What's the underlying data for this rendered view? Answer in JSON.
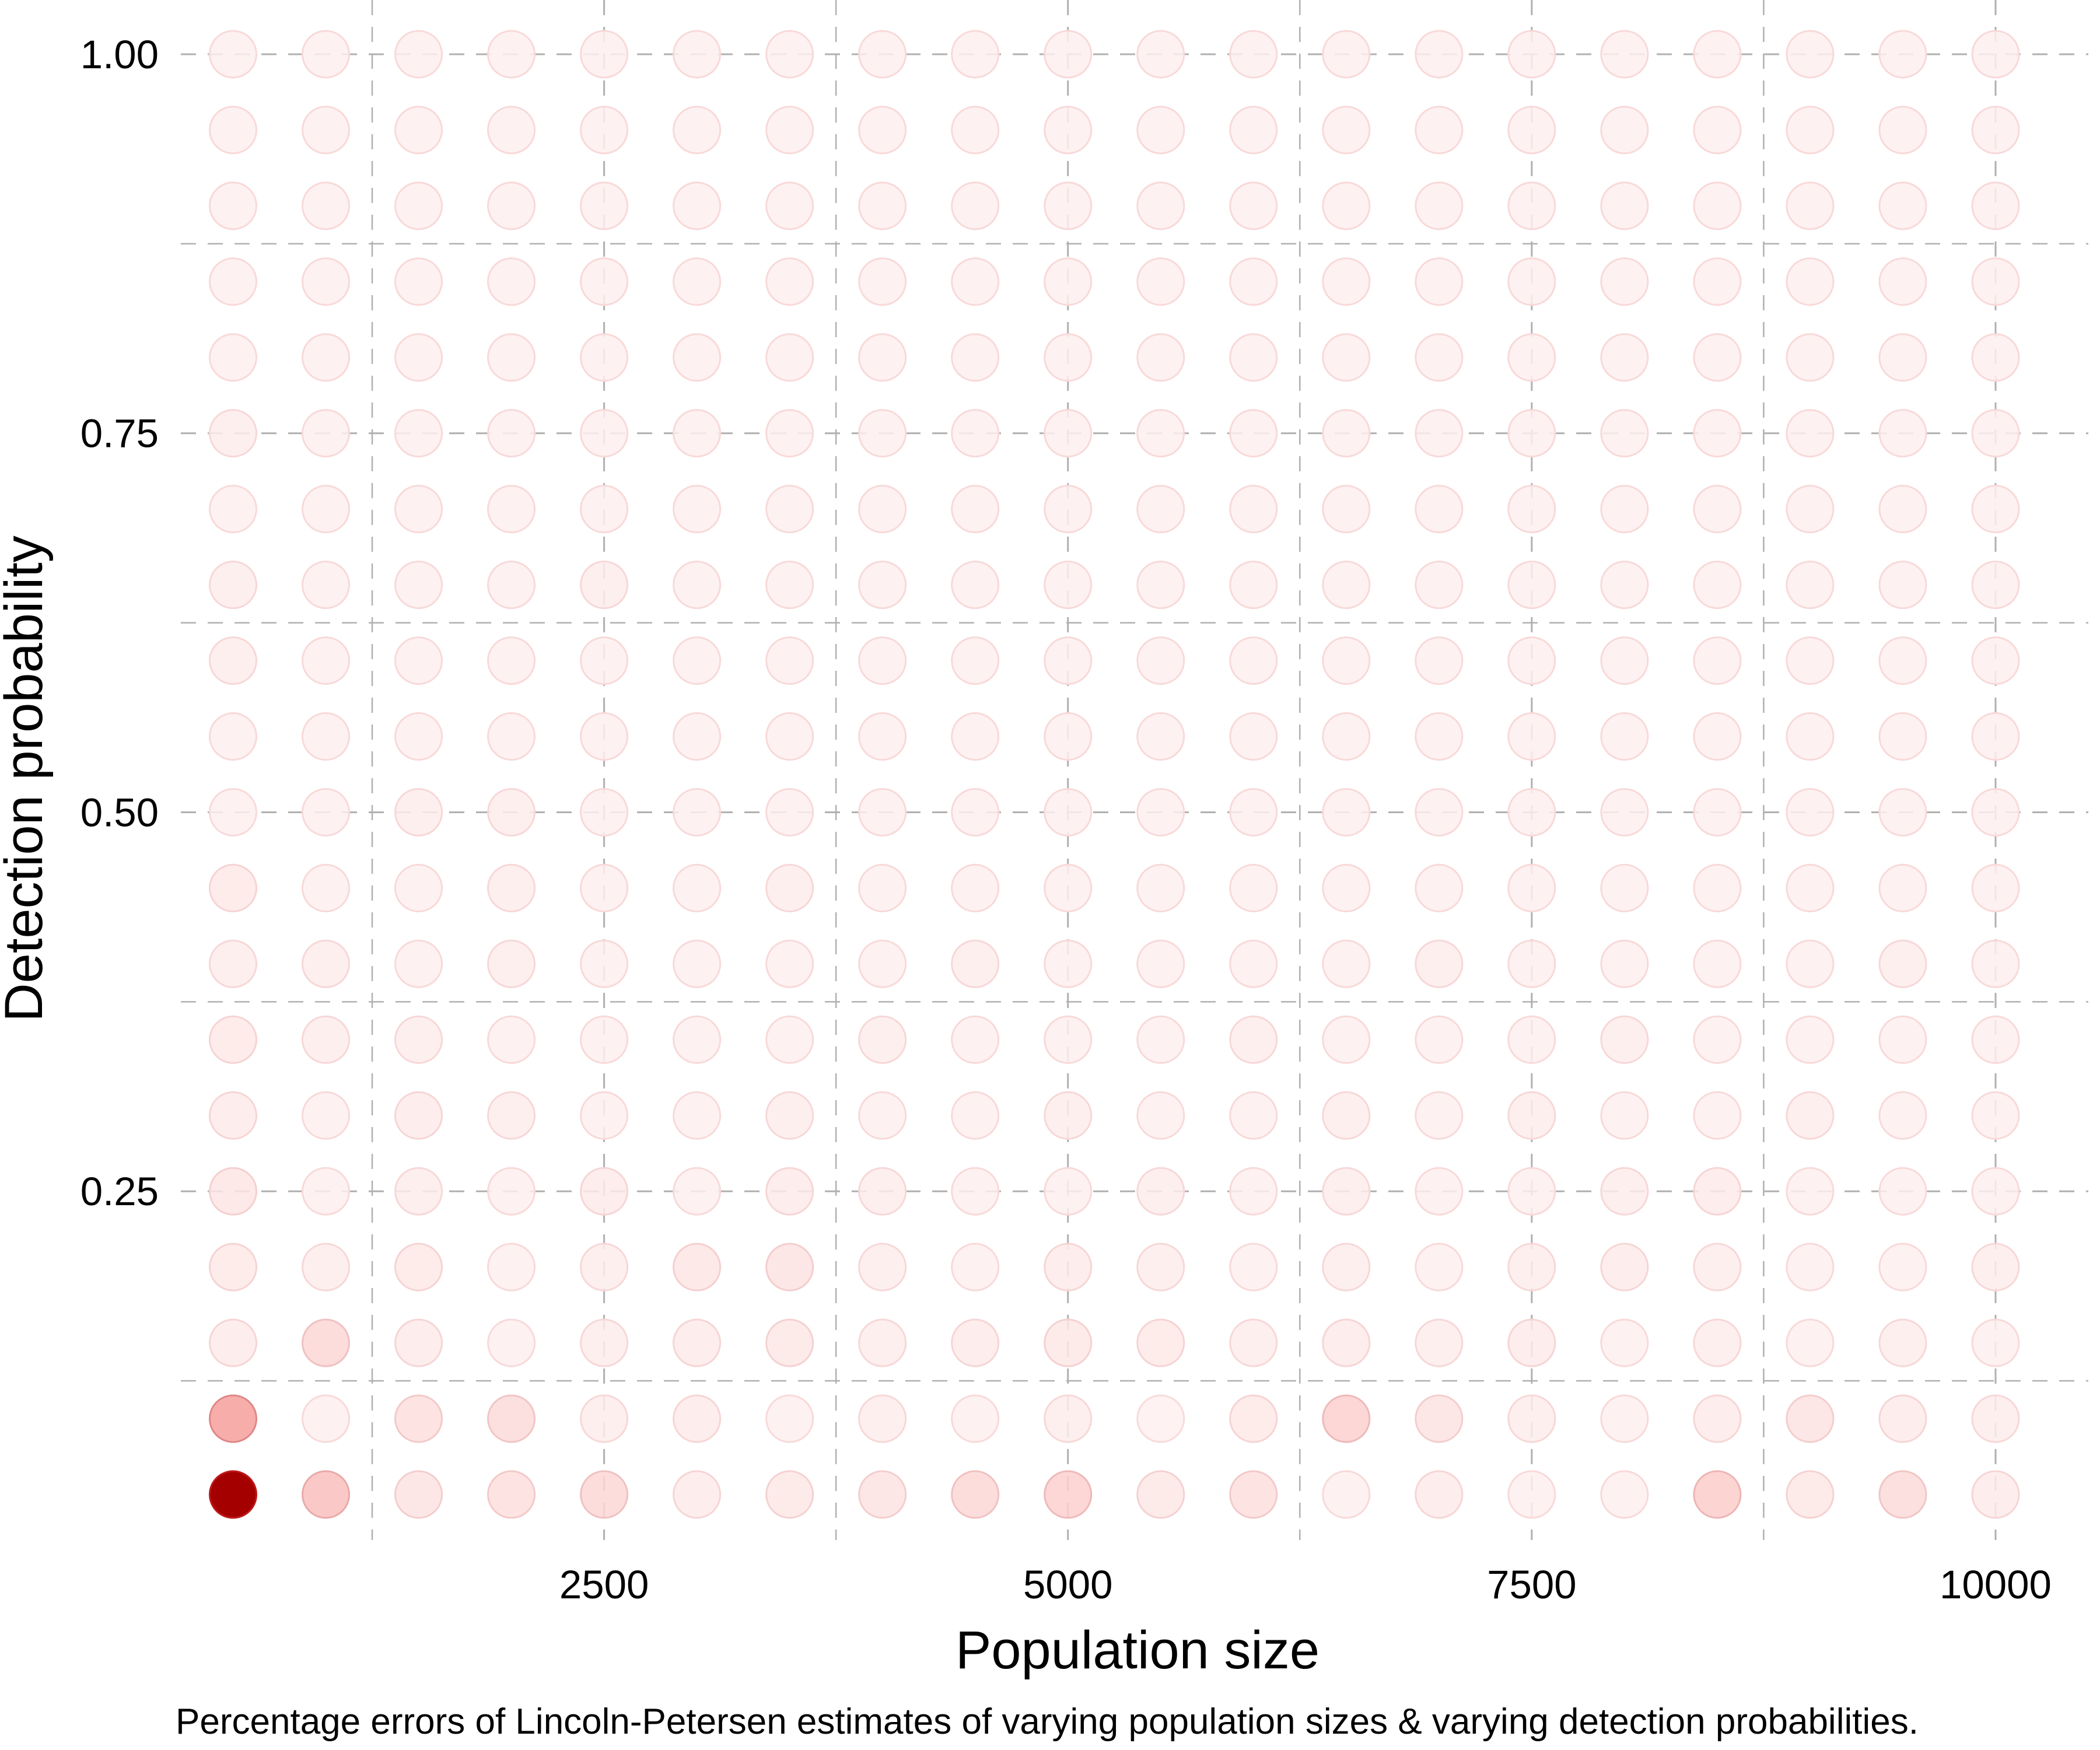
{
  "chart_data": {
    "type": "scatter",
    "xlabel": "Population size",
    "ylabel": "Detection probability",
    "caption": "Percentage errors of Lincoln-Petersen estimates of varying population sizes & varying detection probabilities.",
    "x_ticks": [
      2500,
      5000,
      7500,
      10000
    ],
    "x_tick_labels": [
      "2500",
      "5000",
      "7500",
      "10000"
    ],
    "y_ticks": [
      0.25,
      0.5,
      0.75,
      1.0
    ],
    "y_tick_labels": [
      "0.25",
      "0.50",
      "0.75",
      "1.00"
    ],
    "xlim": [
      250,
      10500
    ],
    "ylim": [
      0.02,
      1.03
    ],
    "grid": true,
    "grid_style": "dashed",
    "color_low": "#fff6f6",
    "color_high": "#a50000",
    "x": [
      500,
      1000,
      1500,
      2000,
      2500,
      3000,
      3500,
      4000,
      4500,
      5000,
      5500,
      6000,
      6500,
      7000,
      7500,
      8000,
      8500,
      9000,
      9500,
      10000
    ],
    "y": [
      0.05,
      0.1,
      0.15,
      0.2,
      0.25,
      0.3,
      0.35,
      0.4,
      0.45,
      0.5,
      0.55,
      0.6,
      0.65,
      0.7,
      0.75,
      0.8,
      0.85,
      0.9,
      0.95,
      1.0
    ],
    "error_intensity": [
      [
        1.0,
        0.28,
        0.1,
        0.12,
        0.16,
        0.06,
        0.08,
        0.1,
        0.16,
        0.2,
        0.08,
        0.12,
        0.04,
        0.06,
        0.04,
        0.04,
        0.22,
        0.08,
        0.14,
        0.06
      ],
      [
        0.45,
        0.04,
        0.12,
        0.14,
        0.05,
        0.06,
        0.04,
        0.05,
        0.04,
        0.05,
        0.03,
        0.07,
        0.2,
        0.1,
        0.05,
        0.04,
        0.06,
        0.1,
        0.06,
        0.05
      ],
      [
        0.06,
        0.16,
        0.06,
        0.04,
        0.05,
        0.06,
        0.08,
        0.05,
        0.06,
        0.08,
        0.07,
        0.05,
        0.06,
        0.05,
        0.06,
        0.04,
        0.05,
        0.04,
        0.05,
        0.04
      ],
      [
        0.07,
        0.05,
        0.07,
        0.04,
        0.05,
        0.09,
        0.1,
        0.05,
        0.04,
        0.06,
        0.05,
        0.04,
        0.05,
        0.04,
        0.05,
        0.06,
        0.05,
        0.04,
        0.04,
        0.05
      ],
      [
        0.09,
        0.04,
        0.05,
        0.04,
        0.06,
        0.04,
        0.06,
        0.05,
        0.04,
        0.04,
        0.05,
        0.04,
        0.05,
        0.04,
        0.04,
        0.05,
        0.06,
        0.04,
        0.04,
        0.04
      ],
      [
        0.06,
        0.04,
        0.06,
        0.05,
        0.04,
        0.04,
        0.05,
        0.04,
        0.04,
        0.05,
        0.04,
        0.04,
        0.05,
        0.04,
        0.05,
        0.04,
        0.04,
        0.05,
        0.04,
        0.04
      ],
      [
        0.07,
        0.05,
        0.05,
        0.04,
        0.04,
        0.04,
        0.04,
        0.05,
        0.04,
        0.04,
        0.04,
        0.05,
        0.04,
        0.04,
        0.04,
        0.05,
        0.04,
        0.04,
        0.04,
        0.04
      ],
      [
        0.05,
        0.05,
        0.04,
        0.05,
        0.04,
        0.04,
        0.04,
        0.04,
        0.05,
        0.04,
        0.04,
        0.04,
        0.04,
        0.05,
        0.04,
        0.04,
        0.04,
        0.04,
        0.05,
        0.04
      ],
      [
        0.07,
        0.04,
        0.04,
        0.05,
        0.04,
        0.04,
        0.05,
        0.04,
        0.04,
        0.04,
        0.04,
        0.04,
        0.04,
        0.04,
        0.04,
        0.04,
        0.04,
        0.04,
        0.04,
        0.04
      ],
      [
        0.04,
        0.04,
        0.05,
        0.05,
        0.04,
        0.04,
        0.04,
        0.04,
        0.04,
        0.04,
        0.04,
        0.04,
        0.04,
        0.04,
        0.04,
        0.04,
        0.04,
        0.04,
        0.04,
        0.04
      ],
      [
        0.04,
        0.04,
        0.04,
        0.04,
        0.04,
        0.04,
        0.04,
        0.04,
        0.04,
        0.04,
        0.04,
        0.04,
        0.04,
        0.04,
        0.04,
        0.04,
        0.04,
        0.04,
        0.04,
        0.04
      ],
      [
        0.05,
        0.04,
        0.04,
        0.04,
        0.04,
        0.04,
        0.04,
        0.04,
        0.04,
        0.04,
        0.04,
        0.04,
        0.04,
        0.04,
        0.04,
        0.04,
        0.04,
        0.04,
        0.04,
        0.04
      ],
      [
        0.05,
        0.04,
        0.04,
        0.04,
        0.05,
        0.04,
        0.04,
        0.04,
        0.04,
        0.04,
        0.04,
        0.04,
        0.04,
        0.04,
        0.04,
        0.04,
        0.04,
        0.04,
        0.04,
        0.04
      ],
      [
        0.04,
        0.04,
        0.04,
        0.04,
        0.04,
        0.04,
        0.04,
        0.04,
        0.04,
        0.04,
        0.04,
        0.04,
        0.04,
        0.04,
        0.04,
        0.04,
        0.04,
        0.04,
        0.04,
        0.04
      ],
      [
        0.05,
        0.04,
        0.04,
        0.04,
        0.04,
        0.04,
        0.04,
        0.04,
        0.04,
        0.04,
        0.04,
        0.04,
        0.04,
        0.04,
        0.04,
        0.04,
        0.04,
        0.04,
        0.04,
        0.04
      ],
      [
        0.04,
        0.04,
        0.04,
        0.04,
        0.04,
        0.04,
        0.04,
        0.04,
        0.04,
        0.04,
        0.04,
        0.04,
        0.04,
        0.04,
        0.04,
        0.04,
        0.04,
        0.04,
        0.04,
        0.04
      ],
      [
        0.04,
        0.04,
        0.04,
        0.04,
        0.04,
        0.04,
        0.04,
        0.04,
        0.04,
        0.04,
        0.04,
        0.04,
        0.04,
        0.04,
        0.04,
        0.04,
        0.04,
        0.04,
        0.04,
        0.04
      ],
      [
        0.04,
        0.04,
        0.04,
        0.04,
        0.04,
        0.04,
        0.04,
        0.04,
        0.04,
        0.04,
        0.04,
        0.04,
        0.04,
        0.04,
        0.04,
        0.04,
        0.04,
        0.04,
        0.04,
        0.04
      ],
      [
        0.04,
        0.04,
        0.04,
        0.04,
        0.04,
        0.04,
        0.04,
        0.04,
        0.04,
        0.04,
        0.04,
        0.04,
        0.04,
        0.04,
        0.04,
        0.04,
        0.04,
        0.04,
        0.04,
        0.04
      ],
      [
        0.04,
        0.04,
        0.04,
        0.04,
        0.04,
        0.04,
        0.04,
        0.04,
        0.04,
        0.04,
        0.04,
        0.04,
        0.04,
        0.04,
        0.04,
        0.04,
        0.04,
        0.04,
        0.04,
        0.04
      ]
    ]
  }
}
